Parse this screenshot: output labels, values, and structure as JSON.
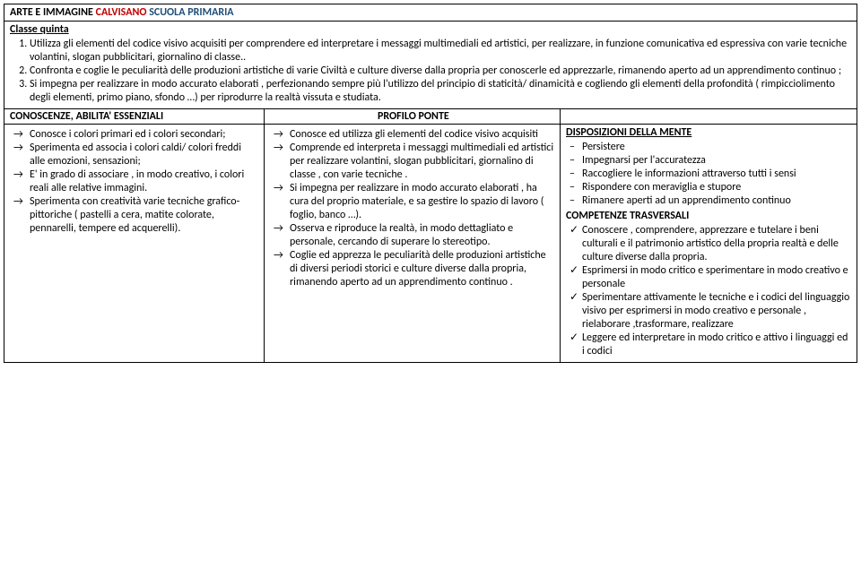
{
  "header": {
    "prefix": "ARTE E IMMAGINE ",
    "red": "CALVISANO",
    "sep": "  ",
    "blue": "SCUOLA PRIMARIA"
  },
  "class_label": "Classe quinta",
  "objectives": [
    "Utilizza gli elementi del codice visivo acquisiti per comprendere ed interpretare i messaggi multimediali ed artistici, per realizzare, in funzione comunicativa ed espressiva con varie tecniche volantini, slogan pubblicitari, giornalino di classe..",
    "Confronta e coglie le peculiarità delle produzioni artistiche di varie Civiltà  e culture diverse dalla propria per conoscerle ed apprezzarle, rimanendo aperto ad un apprendimento continuo ;",
    "Si impegna per realizzare in modo accurato  elaborati , perfezionando sempre più l'utilizzo del principio di staticità/ dinamicità e  cogliendo gli elementi della profondità ( rimpicciolimento degli elementi, primo piano, sfondo …) per riprodurre la realtà vissuta e studiata."
  ],
  "knowledge_header_left": "CONOSCENZE, ABILITA' ESSENZIALI",
  "knowledge_header_right": "PROFILO PONTE",
  "col1_items": [
    "Conosce i colori primari ed i colori secondari;",
    "Sperimenta ed associa i colori caldi/ colori freddi alle emozioni, sensazioni;",
    "E' in grado di associare , in modo creativo, i colori reali alle relative immagini.",
    "Sperimenta  con creatività varie tecniche  grafico- pittoriche ( pastelli a cera, matite colorate, pennarelli, tempere ed acquerelli)."
  ],
  "col2_items": [
    "Conosce ed utilizza gli elementi del codice visivo acquisiti",
    " Comprende  ed interpreta  i messaggi multimediali ed artistici per realizzare volantini, slogan pubblicitari, giornalino di classe , con varie tecniche .",
    " Si impegna per realizzare  in modo accurato elaborati , ha cura del proprio materiale, e sa gestire lo spazio  di lavoro ( foglio, banco …).",
    "Osserva e riproduce la realtà, in modo dettagliato e personale, cercando di superare  lo stereotipo.",
    "Coglie  ed apprezza le peculiarità delle produzioni artistiche di diversi periodi storici e culture diverse dalla propria, rimanendo aperto ad un apprendimento continuo ."
  ],
  "col3": {
    "disp_title": "DISPOSIZIONI DELLA MENTE",
    "disp_items": [
      " Persistere",
      "Impegnarsi per l'accuratezza",
      "Raccogliere le informazioni attraverso tutti i sensi",
      "Rispondere con meraviglia e stupore",
      "Rimanere aperti ad un apprendimento continuo"
    ],
    "comp_title": "COMPETENZE TRASVERSALI",
    "comp_items": [
      "Conoscere , comprendere, apprezzare  e tutelare i beni culturali e il patrimonio artistico della propria realtà e delle culture diverse dalla propria.",
      "Esprimersi in modo critico e sperimentare in modo creativo e personale",
      "Sperimentare attivamente le tecniche e i codici del linguaggio visivo per esprimersi in modo creativo e personale , rielaborare ,trasformare, realizzare",
      "Leggere ed interpretare in modo critico e attivo i linguaggi ed i codici"
    ]
  }
}
